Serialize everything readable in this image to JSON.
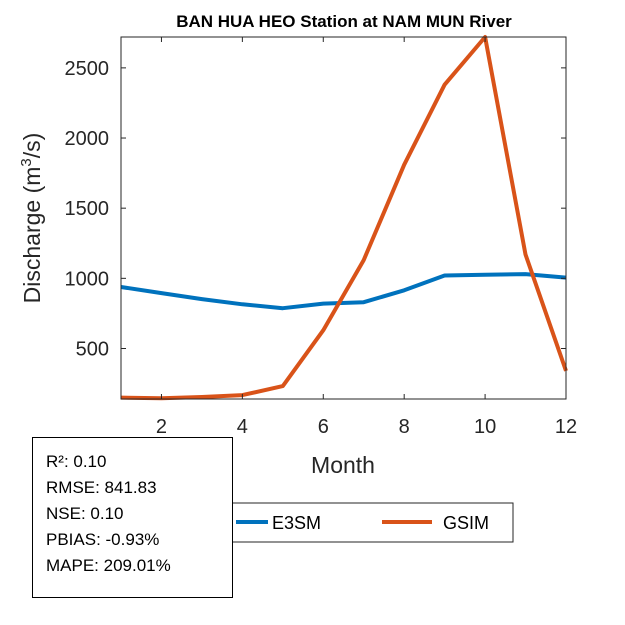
{
  "chart_data": {
    "type": "line",
    "title": "BAN HUA HEO  Station at  NAM MUN  River",
    "xlabel": "Month",
    "ylabel": "Discharge (m3/s)",
    "ylabel_parts": {
      "pre": "Discharge (m",
      "sup": "3",
      "post": "/s)"
    },
    "xlim": [
      1,
      12
    ],
    "ylim": [
      140,
      2720
    ],
    "xticks": [
      2,
      4,
      6,
      8,
      10,
      12
    ],
    "yticks": [
      500,
      1000,
      1500,
      2000,
      2500
    ],
    "x": [
      1,
      2,
      3,
      4,
      5,
      6,
      7,
      8,
      9,
      10,
      11,
      12
    ],
    "series": [
      {
        "name": "E3SM",
        "color": "#0072BD",
        "values": [
          938,
          895,
          852,
          815,
          787,
          820,
          830,
          915,
          1020,
          1025,
          1030,
          1005
        ]
      },
      {
        "name": "GSIM",
        "color": "#D95319",
        "values": [
          150,
          146,
          154,
          168,
          232,
          630,
          1130,
          1810,
          2380,
          2720,
          1170,
          340
        ]
      }
    ],
    "legend": {
      "placement": "bottom",
      "entries": [
        "E3SM",
        "GSIM"
      ]
    },
    "grid": false
  },
  "stats": {
    "r2": "R²: 0.10",
    "rmse": "RMSE: 841.83",
    "nse": "NSE: 0.10",
    "pbias": "PBIAS: -0.93%",
    "mape": "MAPE: 209.01%"
  }
}
